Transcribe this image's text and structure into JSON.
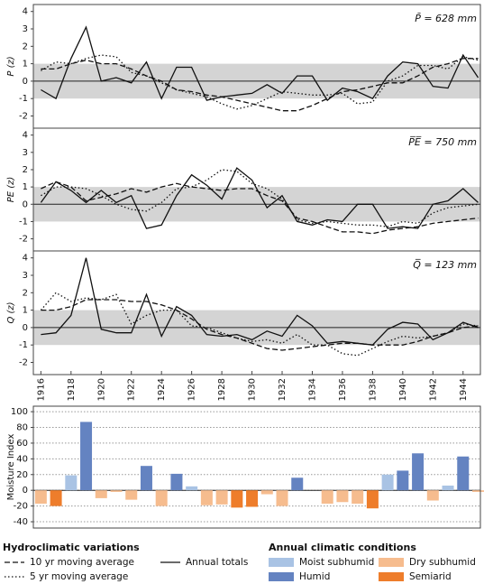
{
  "chart_data": [
    {
      "type": "line",
      "ylabel": "P (z)",
      "annotation": "P̄ = 628 mm",
      "x": [
        1916,
        1917,
        1918,
        1919,
        1920,
        1921,
        1922,
        1923,
        1924,
        1925,
        1926,
        1927,
        1928,
        1929,
        1930,
        1931,
        1932,
        1933,
        1934,
        1935,
        1936,
        1937,
        1938,
        1939,
        1940,
        1941,
        1942,
        1943,
        1944,
        1945
      ],
      "xlim": [
        1915.5,
        1945.15
      ],
      "ylim": [
        -2.7,
        4.4
      ],
      "yticks": [
        -2,
        -1,
        0,
        1,
        2,
        3,
        4
      ],
      "band": [
        -1,
        1
      ],
      "series": [
        {
          "name": "10 yr moving average",
          "dash": "dashed",
          "color": "#111",
          "values": [
            0.7,
            0.7,
            1.0,
            1.2,
            1.0,
            1.0,
            0.7,
            0.3,
            0.0,
            -0.5,
            -0.6,
            -0.8,
            -0.9,
            -1.1,
            -1.3,
            -1.5,
            -1.7,
            -1.7,
            -1.4,
            -1.0,
            -0.6,
            -0.5,
            -0.3,
            -0.1,
            -0.1,
            0.3,
            0.8,
            1.0,
            1.3,
            1.3
          ]
        },
        {
          "name": "5 yr moving average",
          "dash": "dotted",
          "color": "#111",
          "values": [
            0.6,
            1.1,
            1.0,
            1.3,
            1.5,
            1.4,
            0.5,
            0.3,
            -0.1,
            -0.5,
            -0.7,
            -0.9,
            -1.3,
            -1.6,
            -1.4,
            -1.0,
            -0.6,
            -0.7,
            -0.8,
            -0.8,
            -0.7,
            -1.3,
            -1.2,
            0.0,
            0.3,
            0.9,
            0.9,
            0.7,
            1.4,
            1.2
          ]
        },
        {
          "name": "Annual totals",
          "dash": "solid",
          "color": "#111",
          "values": [
            -0.5,
            -1.0,
            1.3,
            3.1,
            0.0,
            0.2,
            -0.1,
            1.1,
            -1.0,
            0.8,
            0.8,
            -1.1,
            -0.9,
            -0.8,
            -0.7,
            -0.2,
            -0.7,
            0.3,
            0.3,
            -1.1,
            -0.4,
            -0.6,
            -1.0,
            0.3,
            1.1,
            1.0,
            -0.3,
            -0.4,
            1.5,
            0.2
          ]
        }
      ]
    },
    {
      "type": "line",
      "ylabel": "PE (z)",
      "annotation": "P̅E̅ = 750 mm",
      "x": [
        1916,
        1917,
        1918,
        1919,
        1920,
        1921,
        1922,
        1923,
        1924,
        1925,
        1926,
        1927,
        1928,
        1929,
        1930,
        1931,
        1932,
        1933,
        1934,
        1935,
        1936,
        1937,
        1938,
        1939,
        1940,
        1941,
        1942,
        1943,
        1944,
        1945
      ],
      "xlim": [
        1915.5,
        1945.15
      ],
      "ylim": [
        -2.7,
        4.4
      ],
      "yticks": [
        -2,
        -1,
        0,
        1,
        2,
        3,
        4
      ],
      "band": [
        -1,
        1
      ],
      "series": [
        {
          "name": "10 yr moving average",
          "dash": "dashed",
          "color": "#111",
          "values": [
            0.9,
            1.3,
            1.0,
            0.2,
            0.4,
            0.6,
            0.9,
            0.7,
            1.0,
            1.2,
            1.0,
            0.9,
            0.8,
            0.9,
            0.9,
            0.5,
            0.2,
            -0.8,
            -1.0,
            -1.3,
            -1.6,
            -1.6,
            -1.7,
            -1.5,
            -1.4,
            -1.3,
            -1.1,
            -1.0,
            -0.9,
            -0.8
          ]
        },
        {
          "name": "5 yr moving average",
          "dash": "dotted",
          "color": "#111",
          "values": [
            0.5,
            1.0,
            1.0,
            0.9,
            0.5,
            0.0,
            -0.3,
            -0.4,
            0.1,
            0.9,
            1.0,
            1.4,
            2.0,
            1.9,
            1.2,
            0.9,
            0.3,
            -0.9,
            -1.1,
            -1.0,
            -1.1,
            -1.2,
            -1.2,
            -1.3,
            -1.0,
            -1.1,
            -0.5,
            -0.2,
            -0.1,
            0.0
          ]
        },
        {
          "name": "Annual totals",
          "dash": "solid",
          "color": "#111",
          "values": [
            0.1,
            1.3,
            0.8,
            0.1,
            0.8,
            0.1,
            0.5,
            -1.4,
            -1.2,
            0.5,
            1.7,
            1.1,
            0.3,
            2.1,
            1.4,
            -0.2,
            0.5,
            -1.0,
            -1.2,
            -0.9,
            -1.0,
            0.0,
            0.0,
            -1.4,
            -1.3,
            -1.4,
            0.0,
            0.2,
            0.9,
            0.1
          ]
        }
      ]
    },
    {
      "type": "line",
      "ylabel": "Q (z)",
      "annotation": "Q̅ = 123 mm",
      "x": [
        1916,
        1917,
        1918,
        1919,
        1920,
        1921,
        1922,
        1923,
        1924,
        1925,
        1926,
        1927,
        1928,
        1929,
        1930,
        1931,
        1932,
        1933,
        1934,
        1935,
        1936,
        1937,
        1938,
        1939,
        1940,
        1941,
        1942,
        1943,
        1944,
        1945
      ],
      "xlim": [
        1915.5,
        1945.15
      ],
      "ylim": [
        -2.7,
        4.4
      ],
      "yticks": [
        -2,
        -1,
        0,
        1,
        2,
        3,
        4
      ],
      "band": [
        -1,
        1
      ],
      "xticks": [
        1916,
        1918,
        1920,
        1922,
        1924,
        1926,
        1928,
        1930,
        1932,
        1934,
        1936,
        1938,
        1940,
        1942,
        1944
      ],
      "series": [
        {
          "name": "10 yr moving average",
          "dash": "dashed",
          "color": "#111",
          "values": [
            1.0,
            1.0,
            1.2,
            1.6,
            1.6,
            1.6,
            1.5,
            1.5,
            1.3,
            1.0,
            0.5,
            -0.1,
            -0.4,
            -0.6,
            -0.9,
            -1.2,
            -1.3,
            -1.2,
            -1.1,
            -1.0,
            -0.9,
            -0.9,
            -1.0,
            -1.0,
            -1.0,
            -0.8,
            -0.5,
            -0.3,
            0.0,
            0.1
          ]
        },
        {
          "name": "5 yr moving average",
          "dash": "dotted",
          "color": "#111",
          "values": [
            1.0,
            2.0,
            1.5,
            1.7,
            1.6,
            1.9,
            0.2,
            0.7,
            1.0,
            1.0,
            0.1,
            0.0,
            -0.3,
            -0.6,
            -0.8,
            -0.7,
            -0.9,
            -0.4,
            -1.0,
            -1.0,
            -1.5,
            -1.6,
            -1.2,
            -0.8,
            -0.5,
            -0.6,
            -0.5,
            -0.3,
            0.2,
            0.1
          ]
        },
        {
          "name": "Annual totals",
          "dash": "solid",
          "color": "#111",
          "values": [
            -0.4,
            -0.3,
            0.7,
            4.0,
            -0.1,
            -0.3,
            -0.3,
            1.9,
            -0.5,
            1.2,
            0.7,
            -0.4,
            -0.5,
            -0.4,
            -0.7,
            -0.2,
            -0.5,
            0.7,
            0.1,
            -0.9,
            -0.8,
            -0.9,
            -1.0,
            -0.1,
            0.3,
            0.2,
            -0.7,
            -0.3,
            0.3,
            0.0
          ]
        }
      ]
    },
    {
      "type": "bar",
      "ylabel": "Moisture Index",
      "x": [
        1916,
        1917,
        1918,
        1919,
        1920,
        1921,
        1922,
        1923,
        1924,
        1925,
        1926,
        1927,
        1928,
        1929,
        1930,
        1931,
        1932,
        1933,
        1934,
        1935,
        1936,
        1937,
        1938,
        1939,
        1940,
        1941,
        1942,
        1943,
        1944,
        1945
      ],
      "xlim": [
        1915.5,
        1945.15
      ],
      "ylim": [
        -48,
        107
      ],
      "yticks": [
        -40,
        -20,
        0,
        20,
        40,
        60,
        80,
        100
      ],
      "grid": true,
      "series": [
        {
          "name": "Moist subhumid",
          "color": "#a9c3e4",
          "values": [
            null,
            null,
            19,
            null,
            null,
            null,
            null,
            null,
            null,
            null,
            5,
            null,
            null,
            null,
            null,
            null,
            null,
            null,
            null,
            null,
            null,
            null,
            null,
            20,
            null,
            null,
            null,
            6,
            null,
            null
          ]
        },
        {
          "name": "Humid",
          "color": "#6483c1",
          "values": [
            null,
            null,
            null,
            87,
            null,
            null,
            null,
            31,
            null,
            21,
            null,
            null,
            null,
            null,
            null,
            null,
            null,
            16,
            null,
            null,
            null,
            null,
            null,
            null,
            25,
            47,
            null,
            null,
            43,
            null
          ]
        },
        {
          "name": "Dry subhumid",
          "color": "#f6bc8e",
          "values": [
            -17,
            null,
            null,
            null,
            -10,
            -2,
            -12,
            null,
            -20,
            null,
            null,
            -19,
            -18,
            null,
            null,
            -5,
            -20,
            null,
            null,
            -17,
            -15,
            -17,
            null,
            null,
            null,
            null,
            -13,
            null,
            null,
            -2
          ]
        },
        {
          "name": "Semiarid",
          "color": "#ee7d2b",
          "values": [
            null,
            -20,
            null,
            null,
            null,
            null,
            null,
            null,
            null,
            null,
            null,
            null,
            null,
            -22,
            -21,
            null,
            null,
            null,
            null,
            null,
            null,
            null,
            -23,
            null,
            null,
            null,
            null,
            null,
            null,
            null
          ]
        }
      ]
    }
  ],
  "legend": {
    "lines_title": "Hydroclimatic variations",
    "bars_title": "Annual climatic conditions"
  }
}
